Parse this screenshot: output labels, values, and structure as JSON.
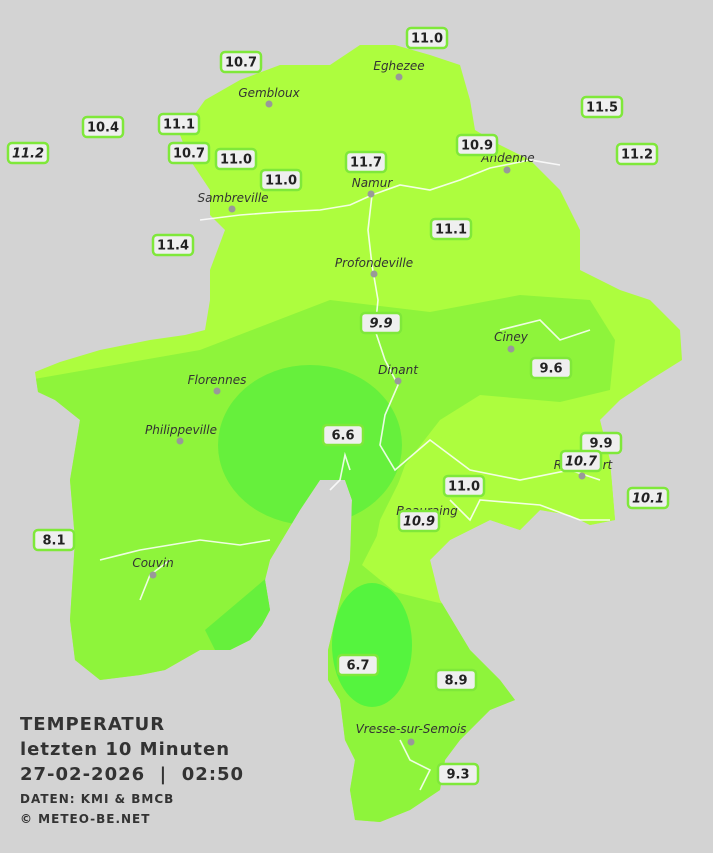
{
  "header": {
    "title": "TEMPERATUR",
    "subtitle": "letzten 10 Minuten",
    "datetime": "27-02-2026  |  02:50",
    "source": "DATEN: KMI & BMCB",
    "copyright": "© METEO-BE.NET"
  },
  "cities": [
    "Eghezee",
    "Gembloux",
    "Andenne",
    "Namur",
    "Sambreville",
    "Profondeville",
    "Ciney",
    "Dinant",
    "Florennes",
    "Philippeville",
    "Rochefort",
    "Beauraing",
    "Couvin",
    "Vresse-sur-Semois"
  ],
  "stations": [
    "11.0",
    "10.7",
    "11.5",
    "10.4",
    "11.1",
    "11.2",
    "10.7",
    "11.0",
    "11.7",
    "10.9",
    "11.2",
    "11.0",
    "11.4",
    "11.1",
    "9.9",
    "9.6",
    "6.6",
    "9.9",
    "10.7",
    "11.0",
    "10.1",
    "10.9",
    "8.1",
    "6.7",
    "8.9",
    "9.3"
  ]
}
